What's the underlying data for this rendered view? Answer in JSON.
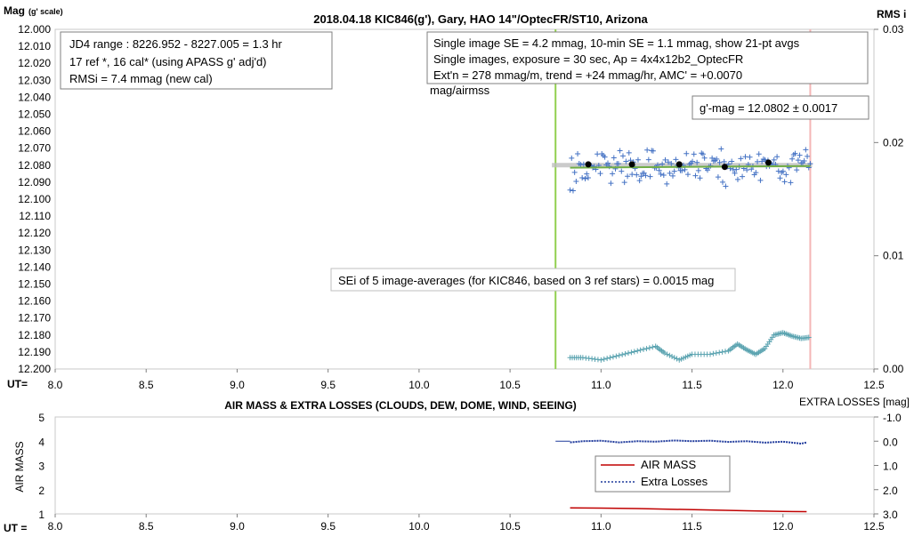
{
  "chart_data": [
    {
      "type": "scatter",
      "title": "2018.04.18  KIC846(g'),  Gary, HAO  14\"/OptecFR/ST10,  Arizona",
      "ylabel": "Mag",
      "ylabel_suffix": "(g' scale)",
      "y2label": "RMS i",
      "xlabel": "UT=",
      "xlim": [
        8.0,
        12.5
      ],
      "ylim": [
        12.0,
        12.2
      ],
      "y_reversed": true,
      "y2lim": [
        0.0,
        0.03
      ],
      "x_ticks": [
        "8.0",
        "8.5",
        "9.0",
        "9.5",
        "10.0",
        "10.5",
        "11.0",
        "11.5",
        "12.0",
        "12.5"
      ],
      "y_ticks": [
        "12.000",
        "12.010",
        "12.020",
        "12.030",
        "12.040",
        "12.050",
        "12.060",
        "12.070",
        "12.080",
        "12.090",
        "12.100",
        "12.110",
        "12.120",
        "12.130",
        "12.140",
        "12.150",
        "12.160",
        "12.170",
        "12.180",
        "12.190",
        "12.200"
      ],
      "y2_ticks": [
        "0.03",
        "0.02",
        "0.01",
        "0.00"
      ],
      "annotations": {
        "box_left": [
          "JD4 range : 8226.952 - 8227.005 = 1.3  hr",
          "17 ref *, 16 cal* (using APASS g' adj'd)",
          "RMSi = 7.4 mmag (new cal)"
        ],
        "box_right": [
          "Single image SE = 4.2 mmag, 10-min SE = 1.1 mmag, show  21-pt avgs",
          "Single images, exposure = 30 sec, Ap = 4x4x12b2_OptecFR",
          "Ext'n = 278 mmag/m, trend =  +24 mmag/hr, AMC' = +0.0070"
        ],
        "box_right_overflow": "mag/airmss",
        "gmag": "g'-mag = 12.0802 ± 0.0017",
        "sei": "SEi of 5 image-averages (for KIC846, based on 3 ref stars) = 0.0015  mag"
      },
      "vlines": [
        {
          "x": 10.75,
          "color": "#92d050"
        },
        {
          "x": 12.15,
          "color": "#f4b6b6"
        }
      ],
      "series": [
        {
          "values_note": "single-image g' magnitudes",
          "color": "#4472c4",
          "marker": "plus",
          "x_range": [
            10.83,
            12.15
          ],
          "center": 12.081,
          "scatter": 0.006,
          "n": 160
        },
        {
          "values_note": "21-pt average",
          "color": "#70ad47",
          "marker": "line",
          "x": [
            10.83,
            12.15
          ],
          "y": [
            12.0815,
            12.0805
          ]
        },
        {
          "values_note": "nominal line",
          "color": "#bfbfbf",
          "marker": "line",
          "x": [
            10.73,
            12.16
          ],
          "y": [
            12.08,
            12.08
          ]
        },
        {
          "values_note": "5 image-averages",
          "color": "#000000",
          "marker": "dot",
          "x": [
            10.93,
            11.17,
            11.43,
            11.68,
            11.92
          ],
          "y": [
            12.0795,
            12.0795,
            12.0795,
            12.081,
            12.0785
          ]
        },
        {
          "values_note": "RMS i (right axis)",
          "color": "#5aa3b0",
          "marker": "plus",
          "x": [
            10.83,
            10.9,
            11.0,
            11.1,
            11.2,
            11.3,
            11.35,
            11.43,
            11.5,
            11.6,
            11.7,
            11.75,
            11.8,
            11.85,
            11.9,
            11.95,
            12.0,
            12.05,
            12.1,
            12.15
          ],
          "y": [
            0.001,
            0.001,
            0.0008,
            0.0012,
            0.0016,
            0.002,
            0.0014,
            0.0008,
            0.0013,
            0.0013,
            0.0016,
            0.0022,
            0.0017,
            0.0013,
            0.0018,
            0.003,
            0.0032,
            0.0029,
            0.0027,
            0.0028
          ]
        }
      ]
    },
    {
      "type": "line",
      "title": "AIR MASS & EXTRA LOSSES (CLOUDS, DEW, DOME, WIND, SEEING)",
      "ylabel": "AIR MASS",
      "y2label": "EXTRA LOSSES [mag]",
      "xlabel": "UT =",
      "xlim": [
        8.0,
        12.5
      ],
      "ylim": [
        1,
        5
      ],
      "y2lim": [
        -1.0,
        3.0
      ],
      "y2_reversed": true,
      "x_ticks": [
        "8.0",
        "8.5",
        "9.0",
        "9.5",
        "10.0",
        "10.5",
        "11.0",
        "11.5",
        "12.0",
        "12.5"
      ],
      "y_ticks": [
        "5",
        "4",
        "3",
        "2",
        "1"
      ],
      "y2_ticks": [
        "-1.0",
        "0.0",
        "1.0",
        "2.0",
        "3.0"
      ],
      "legend": [
        "AIR MASS",
        "Extra Losses"
      ],
      "series": [
        {
          "name": "AIR MASS",
          "color": "#c00000",
          "x": [
            10.83,
            11.0,
            11.2,
            11.4,
            11.6,
            11.8,
            12.0,
            12.13
          ],
          "y": [
            1.25,
            1.24,
            1.22,
            1.19,
            1.16,
            1.13,
            1.1,
            1.09
          ]
        },
        {
          "name": "Extra Losses",
          "color": "#1f3a9c",
          "x": [
            10.83,
            10.9,
            11.0,
            11.1,
            11.2,
            11.3,
            11.4,
            11.5,
            11.6,
            11.7,
            11.8,
            11.9,
            12.0,
            12.1,
            12.13
          ],
          "y": [
            0.05,
            0.0,
            -0.02,
            0.05,
            0.0,
            0.02,
            -0.03,
            0.0,
            -0.02,
            0.03,
            0.0,
            0.06,
            0.02,
            0.1,
            0.05
          ]
        },
        {
          "name": "",
          "color": "#1f3a9c",
          "x": [
            10.75,
            10.83
          ],
          "y": [
            0.0,
            0.0
          ]
        }
      ]
    }
  ]
}
